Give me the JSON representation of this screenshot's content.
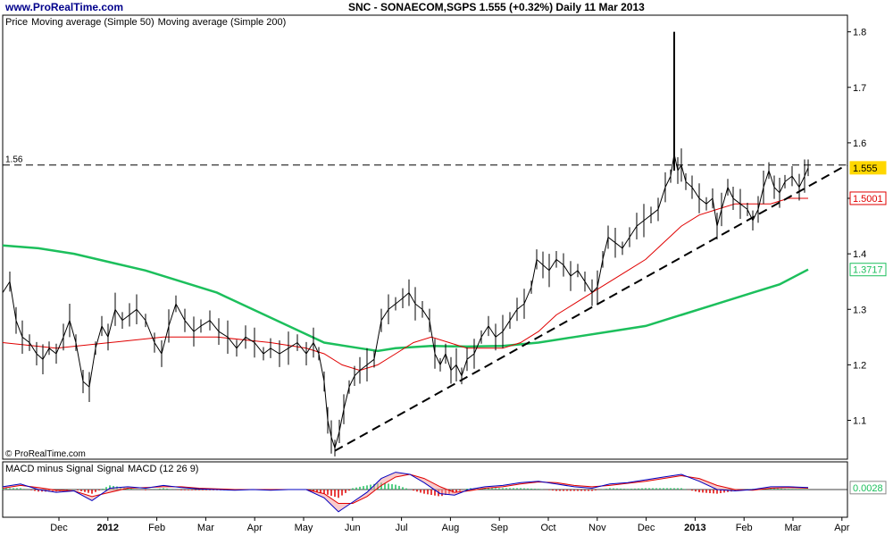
{
  "site": "www.ProRealTime.com",
  "title_line": "SNC - SONAECOM,SGPS     1.555 (+0.32%)     Daily  11 Mar 2013",
  "copyright": "© ProRealTime.com",
  "price_legend": [
    {
      "text": "Price",
      "color": "#000000"
    },
    {
      "text": "Moving average (Simple 50)",
      "color": "#e00000"
    },
    {
      "text": "Moving average (Simple 200)",
      "color": "#1cbf5c"
    }
  ],
  "macd_legend": [
    {
      "text": "MACD minus Signal",
      "color": "#1cbf5c"
    },
    {
      "text": "Signal",
      "color": "#e00000"
    },
    {
      "text": "MACD (12 26 9)",
      "color": "#0000c0"
    }
  ],
  "colors": {
    "price": "#000000",
    "ma50": "#e00000",
    "ma200": "#1cbf5c",
    "macd": "#0000c0",
    "signal": "#e00000",
    "hist_pos": "#1cbf5c",
    "hist_neg": "#e00000",
    "badge_current": "#ffd700"
  },
  "chart_data": {
    "type": "line",
    "y_axis": {
      "ticks": [
        "1.1",
        "1.2",
        "1.3",
        "1.4",
        "1.5",
        "1.6",
        "1.7",
        "1.8"
      ],
      "range": [
        1.03,
        1.83
      ]
    },
    "x_axis": {
      "labels": [
        "Dec",
        "2012",
        "Feb",
        "Mar",
        "Apr",
        "May",
        "Jun",
        "Jul",
        "Aug",
        "Sep",
        "Oct",
        "Nov",
        "Dec",
        "2013",
        "Feb",
        "Mar",
        "Apr"
      ],
      "bold": [
        "2012",
        "2013"
      ]
    },
    "reference_line": {
      "label": "1.56",
      "value": 1.56
    },
    "badges": [
      {
        "label": "1.555",
        "value": 1.555,
        "kind": "current"
      },
      {
        "label": "1.5001",
        "value": 1.5001,
        "kind": "ma50"
      },
      {
        "label": "1.3717",
        "value": 1.3717,
        "kind": "ma200"
      },
      {
        "label": "0.0028",
        "value": 0.0028,
        "kind": "macd"
      }
    ],
    "series": [
      {
        "name": "Price",
        "points": [
          [
            0,
            1.33
          ],
          [
            8,
            1.35
          ],
          [
            15,
            1.28
          ],
          [
            22,
            1.25
          ],
          [
            30,
            1.24
          ],
          [
            38,
            1.22
          ],
          [
            45,
            1.21
          ],
          [
            52,
            1.23
          ],
          [
            60,
            1.22
          ],
          [
            68,
            1.25
          ],
          [
            75,
            1.28
          ],
          [
            82,
            1.24
          ],
          [
            90,
            1.17
          ],
          [
            97,
            1.16
          ],
          [
            104,
            1.23
          ],
          [
            111,
            1.27
          ],
          [
            118,
            1.25
          ],
          [
            126,
            1.3
          ],
          [
            134,
            1.28
          ],
          [
            142,
            1.29
          ],
          [
            150,
            1.3
          ],
          [
            160,
            1.28
          ],
          [
            170,
            1.24
          ],
          [
            178,
            1.22
          ],
          [
            186,
            1.27
          ],
          [
            194,
            1.31
          ],
          [
            204,
            1.28
          ],
          [
            214,
            1.26
          ],
          [
            222,
            1.27
          ],
          [
            232,
            1.28
          ],
          [
            242,
            1.26
          ],
          [
            252,
            1.25
          ],
          [
            262,
            1.23
          ],
          [
            272,
            1.25
          ],
          [
            282,
            1.24
          ],
          [
            292,
            1.22
          ],
          [
            300,
            1.23
          ],
          [
            310,
            1.22
          ],
          [
            320,
            1.23
          ],
          [
            330,
            1.24
          ],
          [
            340,
            1.22
          ],
          [
            348,
            1.24
          ],
          [
            354,
            1.22
          ],
          [
            360,
            1.17
          ],
          [
            364,
            1.1
          ],
          [
            368,
            1.07
          ],
          [
            372,
            1.05
          ],
          [
            377,
            1.08
          ],
          [
            382,
            1.12
          ],
          [
            388,
            1.16
          ],
          [
            394,
            1.18
          ],
          [
            400,
            1.19
          ],
          [
            408,
            1.2
          ],
          [
            416,
            1.21
          ],
          [
            424,
            1.28
          ],
          [
            432,
            1.3
          ],
          [
            440,
            1.31
          ],
          [
            448,
            1.32
          ],
          [
            455,
            1.33
          ],
          [
            462,
            1.31
          ],
          [
            470,
            1.3
          ],
          [
            478,
            1.28
          ],
          [
            484,
            1.22
          ],
          [
            490,
            1.2
          ],
          [
            496,
            1.22
          ],
          [
            502,
            1.19
          ],
          [
            508,
            1.2
          ],
          [
            514,
            1.18
          ],
          [
            520,
            1.21
          ],
          [
            528,
            1.22
          ],
          [
            536,
            1.25
          ],
          [
            544,
            1.27
          ],
          [
            552,
            1.25
          ],
          [
            560,
            1.26
          ],
          [
            568,
            1.28
          ],
          [
            576,
            1.3
          ],
          [
            584,
            1.31
          ],
          [
            592,
            1.34
          ],
          [
            598,
            1.39
          ],
          [
            605,
            1.38
          ],
          [
            612,
            1.37
          ],
          [
            620,
            1.39
          ],
          [
            628,
            1.38
          ],
          [
            636,
            1.36
          ],
          [
            644,
            1.37
          ],
          [
            652,
            1.35
          ],
          [
            660,
            1.33
          ],
          [
            666,
            1.34
          ],
          [
            672,
            1.39
          ],
          [
            678,
            1.43
          ],
          [
            686,
            1.42
          ],
          [
            694,
            1.41
          ],
          [
            702,
            1.43
          ],
          [
            710,
            1.45
          ],
          [
            718,
            1.46
          ],
          [
            726,
            1.47
          ],
          [
            734,
            1.48
          ],
          [
            742,
            1.52
          ],
          [
            748,
            1.54
          ],
          [
            752,
            1.58
          ],
          [
            756,
            1.55
          ],
          [
            760,
            1.56
          ],
          [
            765,
            1.53
          ],
          [
            772,
            1.52
          ],
          [
            780,
            1.5
          ],
          [
            788,
            1.49
          ],
          [
            795,
            1.5
          ],
          [
            800,
            1.45
          ],
          [
            805,
            1.48
          ],
          [
            812,
            1.52
          ],
          [
            818,
            1.5
          ],
          [
            826,
            1.49
          ],
          [
            834,
            1.48
          ],
          [
            840,
            1.46
          ],
          [
            846,
            1.48
          ],
          [
            852,
            1.52
          ],
          [
            858,
            1.55
          ],
          [
            864,
            1.52
          ],
          [
            870,
            1.51
          ],
          [
            876,
            1.53
          ],
          [
            884,
            1.54
          ],
          [
            892,
            1.52
          ],
          [
            898,
            1.54
          ],
          [
            902,
            1.555
          ]
        ]
      },
      {
        "name": "Moving average (Simple 50)",
        "points": [
          [
            0,
            1.24
          ],
          [
            60,
            1.23
          ],
          [
            120,
            1.24
          ],
          [
            180,
            1.25
          ],
          [
            240,
            1.25
          ],
          [
            300,
            1.24
          ],
          [
            340,
            1.23
          ],
          [
            360,
            1.22
          ],
          [
            380,
            1.2
          ],
          [
            400,
            1.19
          ],
          [
            420,
            1.2
          ],
          [
            440,
            1.22
          ],
          [
            460,
            1.24
          ],
          [
            480,
            1.25
          ],
          [
            500,
            1.24
          ],
          [
            520,
            1.23
          ],
          [
            540,
            1.23
          ],
          [
            560,
            1.23
          ],
          [
            580,
            1.24
          ],
          [
            600,
            1.26
          ],
          [
            620,
            1.29
          ],
          [
            640,
            1.31
          ],
          [
            660,
            1.33
          ],
          [
            680,
            1.35
          ],
          [
            700,
            1.37
          ],
          [
            720,
            1.39
          ],
          [
            740,
            1.42
          ],
          [
            760,
            1.45
          ],
          [
            780,
            1.47
          ],
          [
            800,
            1.48
          ],
          [
            820,
            1.49
          ],
          [
            840,
            1.49
          ],
          [
            860,
            1.49
          ],
          [
            880,
            1.5
          ],
          [
            902,
            1.5001
          ]
        ]
      },
      {
        "name": "Moving average (Simple 200)",
        "points": [
          [
            0,
            1.415
          ],
          [
            40,
            1.41
          ],
          [
            80,
            1.4
          ],
          [
            120,
            1.385
          ],
          [
            160,
            1.37
          ],
          [
            200,
            1.35
          ],
          [
            240,
            1.33
          ],
          [
            280,
            1.3
          ],
          [
            320,
            1.27
          ],
          [
            360,
            1.24
          ],
          [
            400,
            1.23
          ],
          [
            420,
            1.225
          ],
          [
            440,
            1.23
          ],
          [
            480,
            1.234
          ],
          [
            520,
            1.233
          ],
          [
            560,
            1.234
          ],
          [
            600,
            1.24
          ],
          [
            640,
            1.25
          ],
          [
            680,
            1.26
          ],
          [
            720,
            1.27
          ],
          [
            760,
            1.29
          ],
          [
            800,
            1.31
          ],
          [
            840,
            1.33
          ],
          [
            870,
            1.345
          ],
          [
            902,
            1.3717
          ]
        ]
      }
    ],
    "trendline": {
      "from": [
        372,
        1.045
      ],
      "to": [
        945,
        1.56
      ]
    },
    "macd_panel": {
      "range": [
        -0.04,
        0.04
      ],
      "macd": [
        [
          0,
          0.004
        ],
        [
          20,
          0.008
        ],
        [
          40,
          0.0
        ],
        [
          60,
          -0.004
        ],
        [
          80,
          -0.002
        ],
        [
          100,
          -0.016
        ],
        [
          120,
          0.002
        ],
        [
          140,
          0.004
        ],
        [
          160,
          0.002
        ],
        [
          180,
          0.006
        ],
        [
          200,
          0.003
        ],
        [
          220,
          0.001
        ],
        [
          240,
          0.0
        ],
        [
          260,
          -0.001
        ],
        [
          280,
          0.0
        ],
        [
          300,
          -0.001
        ],
        [
          320,
          0.0
        ],
        [
          340,
          0.0
        ],
        [
          360,
          -0.012
        ],
        [
          376,
          -0.032
        ],
        [
          392,
          -0.018
        ],
        [
          408,
          -0.004
        ],
        [
          424,
          0.016
        ],
        [
          440,
          0.025
        ],
        [
          456,
          0.022
        ],
        [
          472,
          0.01
        ],
        [
          490,
          -0.006
        ],
        [
          506,
          -0.008
        ],
        [
          522,
          0.0
        ],
        [
          540,
          0.004
        ],
        [
          560,
          0.006
        ],
        [
          580,
          0.01
        ],
        [
          600,
          0.012
        ],
        [
          620,
          0.008
        ],
        [
          640,
          0.004
        ],
        [
          660,
          0.002
        ],
        [
          680,
          0.008
        ],
        [
          700,
          0.01
        ],
        [
          720,
          0.014
        ],
        [
          740,
          0.018
        ],
        [
          760,
          0.022
        ],
        [
          780,
          0.012
        ],
        [
          800,
          0.0
        ],
        [
          820,
          -0.002
        ],
        [
          840,
          0.0
        ],
        [
          860,
          0.004
        ],
        [
          880,
          0.004
        ],
        [
          902,
          0.0028
        ]
      ],
      "signal": [
        [
          0,
          0.002
        ],
        [
          20,
          0.006
        ],
        [
          40,
          0.003
        ],
        [
          60,
          -0.001
        ],
        [
          80,
          -0.002
        ],
        [
          100,
          -0.01
        ],
        [
          120,
          -0.004
        ],
        [
          140,
          0.002
        ],
        [
          160,
          0.003
        ],
        [
          180,
          0.004
        ],
        [
          200,
          0.004
        ],
        [
          220,
          0.002
        ],
        [
          240,
          0.001
        ],
        [
          260,
          0.0
        ],
        [
          280,
          0.0
        ],
        [
          300,
          0.0
        ],
        [
          320,
          0.0
        ],
        [
          340,
          0.0
        ],
        [
          360,
          -0.006
        ],
        [
          376,
          -0.02
        ],
        [
          392,
          -0.02
        ],
        [
          408,
          -0.01
        ],
        [
          424,
          0.006
        ],
        [
          440,
          0.018
        ],
        [
          456,
          0.022
        ],
        [
          472,
          0.016
        ],
        [
          490,
          0.004
        ],
        [
          506,
          -0.004
        ],
        [
          522,
          -0.002
        ],
        [
          540,
          0.002
        ],
        [
          560,
          0.004
        ],
        [
          580,
          0.008
        ],
        [
          600,
          0.011
        ],
        [
          620,
          0.01
        ],
        [
          640,
          0.006
        ],
        [
          660,
          0.004
        ],
        [
          680,
          0.006
        ],
        [
          700,
          0.009
        ],
        [
          720,
          0.012
        ],
        [
          740,
          0.016
        ],
        [
          760,
          0.02
        ],
        [
          780,
          0.016
        ],
        [
          800,
          0.006
        ],
        [
          820,
          0.0
        ],
        [
          840,
          -0.001
        ],
        [
          860,
          0.002
        ],
        [
          880,
          0.003
        ],
        [
          902,
          0.002
        ]
      ]
    }
  }
}
